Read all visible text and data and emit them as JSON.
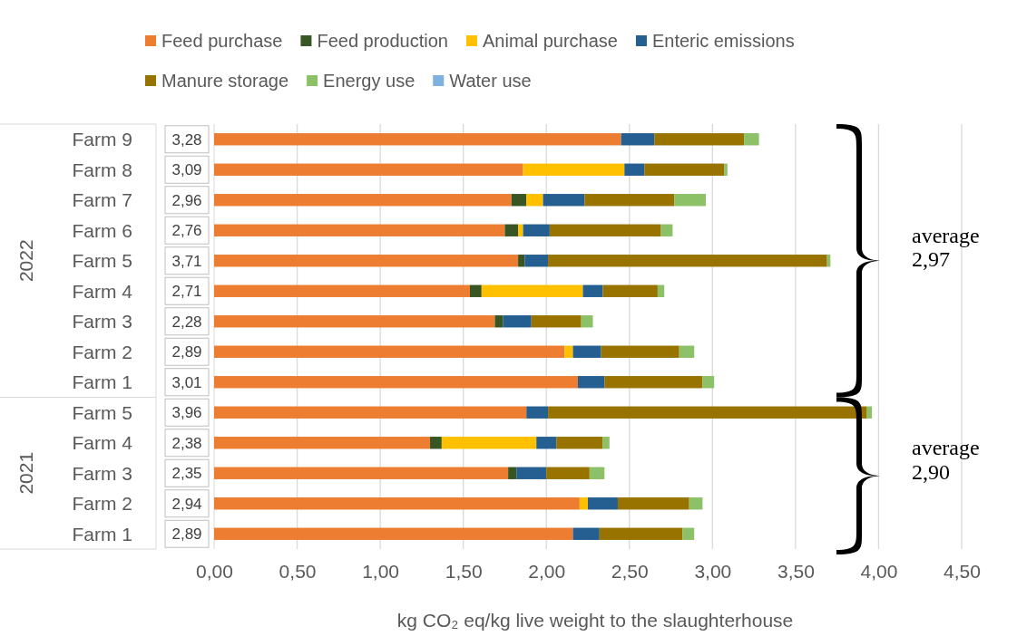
{
  "chart_data": {
    "type": "bar",
    "orientation": "horizontal",
    "stacked": true,
    "xlabel": "kg CO₂ eq/kg live weight to the slaughterhouse",
    "categories": [
      "Farm 9",
      "Farm 8",
      "Farm 7",
      "Farm 6",
      "Farm 5",
      "Farm 4",
      "Farm 3",
      "Farm 2",
      "Farm 1",
      "Farm 5",
      "Farm 4",
      "Farm 3",
      "Farm 2",
      "Farm 1"
    ],
    "series": [
      {
        "name": "Feed purchase",
        "color": "#ed7d31",
        "values": [
          2.45,
          1.86,
          1.79,
          1.75,
          1.83,
          1.54,
          1.69,
          2.11,
          2.19,
          1.88,
          1.3,
          1.77,
          2.2,
          2.16
        ]
      },
      {
        "name": "Feed production",
        "color": "#375623",
        "values": [
          0,
          0,
          0.09,
          0.08,
          0.04,
          0.07,
          0.05,
          0,
          0,
          0,
          0.07,
          0.05,
          0,
          0
        ]
      },
      {
        "name": "Animal purchase",
        "color": "#ffc000",
        "values": [
          0,
          0.61,
          0.1,
          0.03,
          0,
          0.61,
          0,
          0.05,
          0,
          0,
          0.57,
          0,
          0.05,
          0
        ]
      },
      {
        "name": "Enteric emissions",
        "color": "#255e91",
        "values": [
          0.2,
          0.12,
          0.25,
          0.16,
          0.14,
          0.12,
          0.17,
          0.17,
          0.16,
          0.13,
          0.12,
          0.18,
          0.18,
          0.16
        ]
      },
      {
        "name": "Manure storage",
        "color": "#997300",
        "values": [
          0.54,
          0.48,
          0.54,
          0.67,
          1.68,
          0.33,
          0.3,
          0.47,
          0.59,
          1.92,
          0.28,
          0.26,
          0.43,
          0.5
        ]
      },
      {
        "name": "Energy use",
        "color": "#8cc168",
        "values": [
          0.09,
          0.02,
          0.19,
          0.07,
          0.02,
          0.04,
          0.07,
          0.09,
          0.07,
          0.03,
          0.04,
          0.09,
          0.08,
          0.07
        ]
      },
      {
        "name": "Water use",
        "color": "#7eb0e0",
        "values": [
          0,
          0,
          0,
          0,
          0,
          0,
          0,
          0,
          0,
          0,
          0,
          0,
          0,
          0
        ]
      }
    ],
    "totals": [
      "3,28",
      "3,09",
      "2,96",
      "2,76",
      "3,71",
      "2,71",
      "2,28",
      "2,89",
      "3,01",
      "3,96",
      "2,38",
      "2,35",
      "2,94",
      "2,89"
    ],
    "xlim": [
      0,
      4.5
    ],
    "xticks": [
      {
        "value": 0,
        "label": "0,00"
      },
      {
        "value": 0.5,
        "label": "0,50"
      },
      {
        "value": 1,
        "label": "1,00"
      },
      {
        "value": 1.5,
        "label": "1,50"
      },
      {
        "value": 2,
        "label": "2,00"
      },
      {
        "value": 2.5,
        "label": "2,50"
      },
      {
        "value": 3,
        "label": "3,00"
      },
      {
        "value": 3.5,
        "label": "3,50"
      },
      {
        "value": 4,
        "label": "4,00"
      },
      {
        "value": 4.5,
        "label": "4,50"
      }
    ],
    "grid": "x",
    "legend": "top",
    "annotations": [
      "2022",
      "2021",
      "average 2,97",
      "average 2,90"
    ]
  }
}
